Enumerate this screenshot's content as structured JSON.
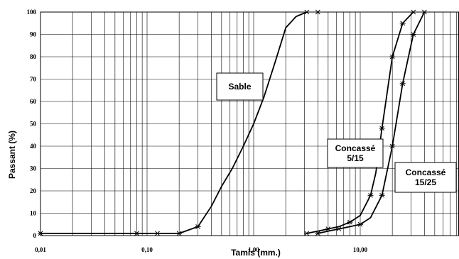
{
  "chart_data": {
    "type": "line",
    "xscale": "log",
    "xlim": [
      0.01,
      100
    ],
    "ylim": [
      0,
      100
    ],
    "xlabel": "Tamis (mm.)",
    "ylabel": "Passant (%)",
    "grid": true,
    "legend": "none",
    "x_tick_labels": [
      "0,01",
      "0,10",
      "1,00",
      "10,00"
    ],
    "y_tick_labels": [
      "0",
      "10",
      "20",
      "30",
      "40",
      "50",
      "60",
      "70",
      "80",
      "90",
      "100"
    ],
    "annotations": [
      {
        "lines": [
          "Sable"
        ],
        "series": "Sable"
      },
      {
        "lines": [
          "Concassé",
          "5/15"
        ],
        "series": "Concassé 5/15"
      },
      {
        "lines": [
          "Concassé",
          "15/25"
        ],
        "series": "Concassé 15/25"
      }
    ],
    "series": [
      {
        "name": "Sable",
        "x": [
          0.01,
          0.08,
          0.125,
          0.2,
          0.3,
          0.4,
          0.5,
          0.63,
          0.8,
          1.0,
          1.25,
          1.6,
          2.0,
          2.5,
          3.15
        ],
        "y": [
          1,
          1,
          1,
          1,
          4,
          13,
          22,
          30,
          40,
          50,
          62,
          78,
          93,
          98,
          100
        ],
        "markers": [
          0.01,
          0.08,
          0.125,
          0.2,
          0.3,
          3.15,
          4
        ]
      },
      {
        "name": "Concassé 5/15",
        "x": [
          3.15,
          4,
          5,
          6.3,
          8,
          10,
          12.5,
          14,
          16,
          20,
          25,
          31.5
        ],
        "y": [
          1,
          2,
          3,
          4,
          6,
          9,
          18,
          28,
          48,
          80,
          95,
          100
        ],
        "markers": [
          3.15,
          5,
          8,
          12.5,
          16,
          20,
          25,
          31.5
        ]
      },
      {
        "name": "Concassé 15/25",
        "x": [
          4,
          5,
          6.3,
          8,
          10,
          12.5,
          16,
          20,
          25,
          31.5,
          40
        ],
        "y": [
          1,
          2,
          3,
          4,
          5,
          8,
          18,
          40,
          68,
          90,
          100
        ],
        "markers": [
          4,
          6.3,
          10,
          16,
          20,
          25,
          31.5,
          40
        ]
      }
    ]
  }
}
